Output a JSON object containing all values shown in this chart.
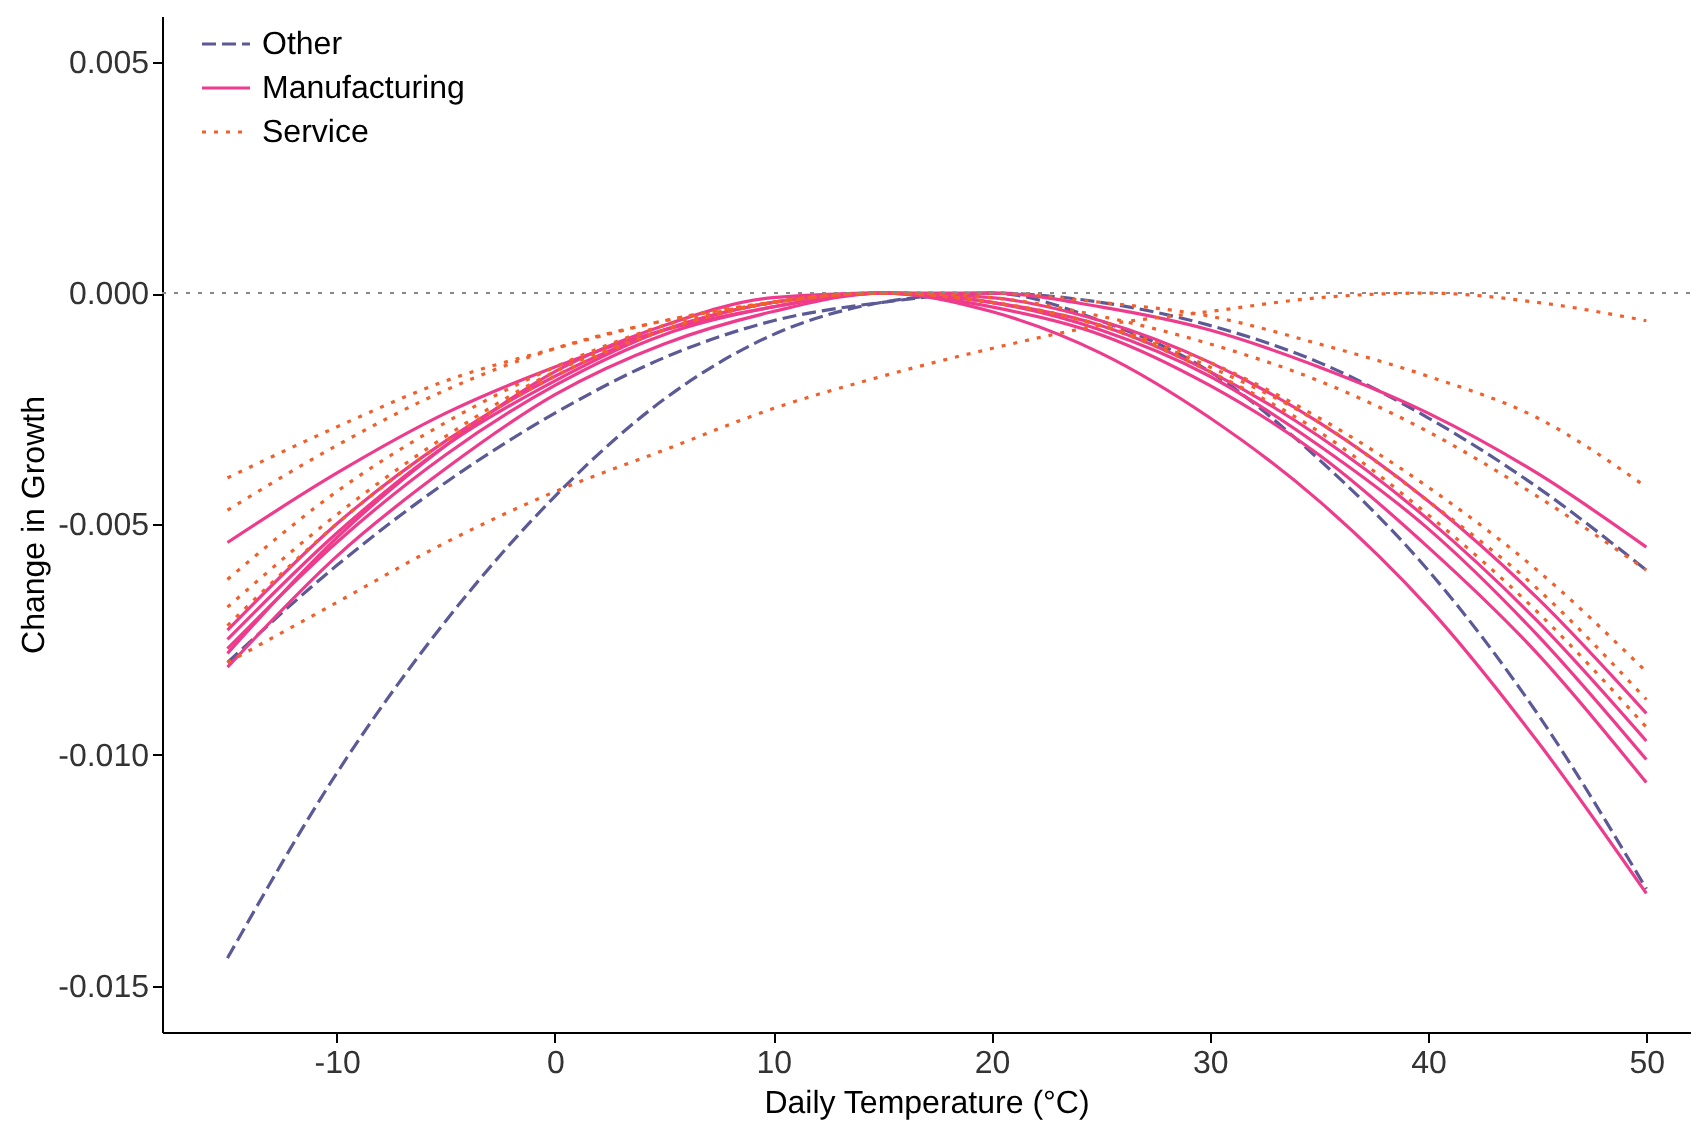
{
  "chart_data": {
    "type": "line",
    "xlabel": "Daily Temperature (°C)",
    "ylabel": "Change in Growth",
    "x": [
      -15,
      -10,
      -5,
      0,
      5,
      10,
      15,
      20,
      25,
      30,
      35,
      40,
      45,
      50
    ],
    "series": [
      {
        "name": "Other",
        "color": "#5b5a96",
        "line_style": "dashed",
        "values": [
          -0.0144,
          -0.0104,
          -0.0071,
          -0.0044,
          -0.0023,
          -0.0009,
          -0.0002,
          0,
          -0.0006,
          -0.0017,
          -0.0036,
          -0.006,
          -0.0091,
          -0.0129
        ]
      },
      {
        "color": "#5b5a96",
        "line_style": "dashed",
        "values": [
          -0.008,
          -0.0059,
          -0.0041,
          -0.0026,
          -0.0014,
          -0.0006,
          -0.0002,
          0,
          -0.0002,
          -0.0007,
          -0.0015,
          -0.0027,
          -0.0042,
          -0.006
        ]
      },
      {
        "name": "Manufacturing",
        "color": "#ef3b8c",
        "line_style": "solid",
        "values": [
          -0.0054,
          -0.0039,
          -0.0026,
          -0.0016,
          -0.0008,
          -0.0003,
          0,
          0,
          -0.0003,
          -0.0008,
          -0.0016,
          -0.0026,
          -0.0039,
          -0.0055
        ]
      },
      {
        "color": "#ef3b8c",
        "line_style": "solid",
        "values": [
          -0.0078,
          -0.0053,
          -0.0033,
          -0.0017,
          -0.0007,
          -0.0001,
          0,
          -0.0004,
          -0.0013,
          -0.0027,
          -0.0045,
          -0.0068,
          -0.0097,
          -0.013
        ]
      },
      {
        "color": "#ef3b8c",
        "line_style": "solid",
        "values": [
          -0.0073,
          -0.005,
          -0.0032,
          -0.0018,
          -0.0008,
          -0.0002,
          0,
          -0.0003,
          -0.0009,
          -0.002,
          -0.0035,
          -0.0055,
          -0.0078,
          -0.0106
        ]
      },
      {
        "color": "#ef3b8c",
        "line_style": "solid",
        "values": [
          -0.0075,
          -0.0052,
          -0.0033,
          -0.0019,
          -0.0008,
          -0.0002,
          0,
          -0.0002,
          -0.0008,
          -0.0018,
          -0.0033,
          -0.0051,
          -0.0074,
          -0.0101
        ]
      },
      {
        "color": "#ef3b8c",
        "line_style": "solid",
        "values": [
          -0.0077,
          -0.0054,
          -0.0035,
          -0.002,
          -0.0009,
          -0.0003,
          0,
          -0.0002,
          -0.0007,
          -0.0017,
          -0.0031,
          -0.0049,
          -0.0071,
          -0.0097
        ]
      },
      {
        "color": "#ef3b8c",
        "line_style": "solid",
        "values": [
          -0.0081,
          -0.0057,
          -0.0038,
          -0.0022,
          -0.0011,
          -0.0004,
          0,
          -0.0001,
          -0.0006,
          -0.0015,
          -0.0028,
          -0.0045,
          -0.0066,
          -0.0091
        ]
      },
      {
        "name": "Service",
        "color": "#f0602c",
        "line_style": "dotted",
        "values": [
          -0.008,
          -0.0067,
          -0.0054,
          -0.0043,
          -0.0034,
          -0.0025,
          -0.0018,
          -0.0012,
          -0.0007,
          -0.0004,
          -0.0001,
          0,
          -0.0002,
          -0.0006
        ]
      },
      {
        "color": "#f0602c",
        "line_style": "dotted",
        "values": [
          -0.004,
          -0.0029,
          -0.0019,
          -0.0012,
          -0.0006,
          -0.0002,
          0,
          0,
          -0.0002,
          -0.0005,
          -0.0011,
          -0.0018,
          -0.0027,
          -0.0042
        ]
      },
      {
        "color": "#f0602c",
        "line_style": "dotted",
        "values": [
          -0.0047,
          -0.0033,
          -0.0021,
          -0.0012,
          -0.0006,
          -0.0002,
          0,
          -0.0001,
          -0.0005,
          -0.0011,
          -0.0019,
          -0.003,
          -0.0044,
          -0.006
        ]
      },
      {
        "color": "#f0602c",
        "line_style": "dotted",
        "values": [
          -0.0062,
          -0.0043,
          -0.0028,
          -0.0016,
          -0.0007,
          -0.0002,
          0,
          -0.0002,
          -0.0007,
          -0.0015,
          -0.0027,
          -0.0042,
          -0.006,
          -0.0082
        ]
      },
      {
        "color": "#f0602c",
        "line_style": "dotted",
        "values": [
          -0.0068,
          -0.0048,
          -0.0031,
          -0.0017,
          -0.0008,
          -0.0002,
          0,
          -0.0002,
          -0.0007,
          -0.0016,
          -0.0028,
          -0.0045,
          -0.0064,
          -0.0088
        ]
      },
      {
        "color": "#f0602c",
        "line_style": "dotted",
        "values": [
          -0.0072,
          -0.005,
          -0.0032,
          -0.0018,
          -0.0008,
          -0.0002,
          0,
          -0.0002,
          -0.0007,
          -0.0017,
          -0.003,
          -0.0048,
          -0.0069,
          -0.0094
        ]
      }
    ],
    "xlim": [
      -18,
      52
    ],
    "xticks": [
      -10,
      0,
      10,
      20,
      30,
      40,
      50
    ],
    "ylim": [
      -0.016,
      0.006
    ],
    "yticks": [
      {
        "value": 0.005,
        "label": "0.005"
      },
      {
        "value": 0,
        "label": "0.000"
      },
      {
        "value": -0.005,
        "label": "-0.005"
      },
      {
        "value": -0.01,
        "label": "-0.010"
      },
      {
        "value": -0.015,
        "label": "-0.015"
      }
    ],
    "ref_lines": [
      {
        "axis": "y",
        "value": 0,
        "color": "#888888",
        "line_style": "dotted"
      }
    ],
    "grid": false,
    "legend": "top left"
  }
}
